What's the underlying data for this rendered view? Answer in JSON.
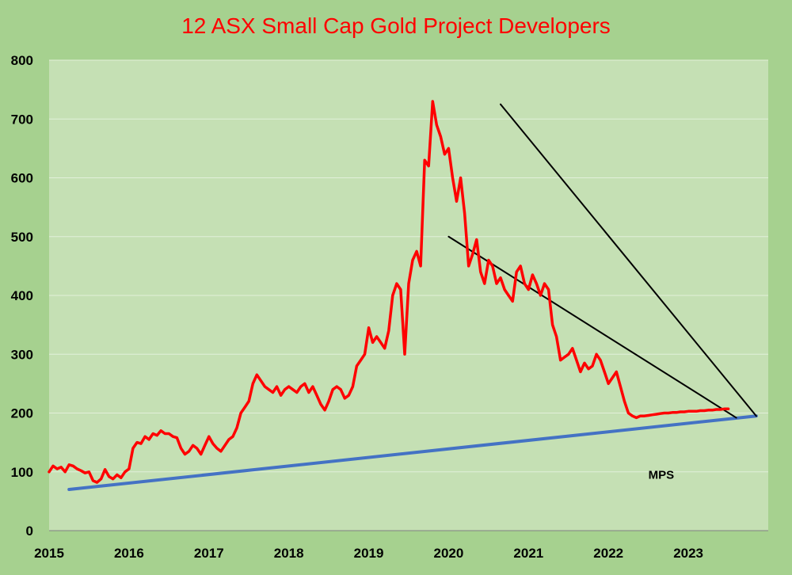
{
  "chart_data": {
    "type": "line",
    "title": "12 ASX Small Cap Gold Project Developers",
    "xlabel": "",
    "ylabel": "",
    "xlim": [
      2015,
      2024
    ],
    "ylim": [
      0,
      800
    ],
    "y_ticks": [
      0,
      100,
      200,
      300,
      400,
      500,
      600,
      700,
      800
    ],
    "x_ticks": [
      2015,
      2016,
      2017,
      2018,
      2019,
      2020,
      2021,
      2022,
      2023
    ],
    "grid": true,
    "colors": {
      "background": "#a6d18f",
      "plot_area": "#c5e0b4",
      "gridline": "#e2efd9",
      "series": "#ff0000",
      "support_line": "#4472c4",
      "trend_lines": "#000000",
      "title": "#ff0000"
    },
    "series": [
      {
        "x": [
          2015.0,
          2015.05,
          2015.1,
          2015.15,
          2015.2,
          2015.25,
          2015.3,
          2015.35,
          2015.4,
          2015.45,
          2015.5,
          2015.55,
          2015.6,
          2015.65,
          2015.7,
          2015.75,
          2015.8,
          2015.85,
          2015.9,
          2015.95,
          2016.0,
          2016.05,
          2016.1,
          2016.15,
          2016.2,
          2016.25,
          2016.3,
          2016.35,
          2016.4,
          2016.45,
          2016.5,
          2016.55,
          2016.6,
          2016.65,
          2016.7,
          2016.75,
          2016.8,
          2016.85,
          2016.9,
          2016.95,
          2017.0,
          2017.05,
          2017.1,
          2017.15,
          2017.2,
          2017.25,
          2017.3,
          2017.35,
          2017.4,
          2017.45,
          2017.5,
          2017.55,
          2017.6,
          2017.65,
          2017.7,
          2017.75,
          2017.8,
          2017.85,
          2017.9,
          2017.95,
          2018.0,
          2018.05,
          2018.1,
          2018.15,
          2018.2,
          2018.25,
          2018.3,
          2018.35,
          2018.4,
          2018.45,
          2018.5,
          2018.55,
          2018.6,
          2018.65,
          2018.7,
          2018.75,
          2018.8,
          2018.85,
          2018.9,
          2018.95,
          2019.0,
          2019.05,
          2019.1,
          2019.15,
          2019.2,
          2019.25,
          2019.3,
          2019.35,
          2019.4,
          2019.45,
          2019.5,
          2019.55,
          2019.6,
          2019.65,
          2019.7,
          2019.75,
          2019.8,
          2019.85,
          2019.9,
          2019.95,
          2020.0,
          2020.05,
          2020.1,
          2020.15,
          2020.2,
          2020.25,
          2020.3,
          2020.35,
          2020.4,
          2020.45,
          2020.5,
          2020.55,
          2020.6,
          2020.65,
          2020.7,
          2020.75,
          2020.8,
          2020.85,
          2020.9,
          2020.95,
          2021.0,
          2021.05,
          2021.1,
          2021.15,
          2021.2,
          2021.25,
          2021.3,
          2021.35,
          2021.4,
          2021.45,
          2021.5,
          2021.55,
          2021.6,
          2021.65,
          2021.7,
          2021.75,
          2021.8,
          2021.85,
          2021.9,
          2021.95,
          2022.0,
          2022.05,
          2022.1,
          2022.15,
          2022.2,
          2022.25,
          2022.3,
          2022.35,
          2022.4,
          2022.45,
          2022.5,
          2022.55,
          2022.6,
          2022.65,
          2022.7,
          2022.75,
          2022.8,
          2022.85,
          2022.9,
          2022.95,
          2023.0,
          2023.05,
          2023.1,
          2023.15,
          2023.2,
          2023.25,
          2023.3,
          2023.35,
          2023.4,
          2023.45,
          2023.5
        ],
        "values": [
          100,
          110,
          105,
          108,
          100,
          112,
          110,
          105,
          102,
          98,
          100,
          85,
          82,
          88,
          104,
          92,
          88,
          95,
          90,
          100,
          105,
          140,
          150,
          148,
          160,
          155,
          165,
          162,
          170,
          165,
          165,
          160,
          158,
          140,
          130,
          135,
          145,
          140,
          130,
          145,
          160,
          148,
          140,
          135,
          145,
          155,
          160,
          175,
          200,
          210,
          220,
          250,
          265,
          255,
          245,
          240,
          235,
          245,
          230,
          240,
          245,
          240,
          235,
          245,
          250,
          235,
          245,
          230,
          215,
          205,
          220,
          240,
          245,
          240,
          225,
          230,
          245,
          280,
          290,
          300,
          345,
          320,
          330,
          320,
          310,
          340,
          400,
          420,
          410,
          300,
          420,
          460,
          475,
          450,
          630,
          620,
          730,
          690,
          670,
          640,
          650,
          600,
          560,
          600,
          540,
          450,
          470,
          495,
          440,
          420,
          460,
          450,
          420,
          430,
          410,
          400,
          390,
          440,
          450,
          420,
          410,
          435,
          420,
          400,
          420,
          410,
          350,
          330,
          290,
          295,
          300,
          310,
          290,
          270,
          285,
          275,
          280,
          300,
          290,
          270,
          250,
          260,
          270,
          245,
          220,
          200,
          195,
          192,
          195,
          195,
          196,
          197,
          198,
          199,
          200,
          200,
          201,
          201,
          202,
          202,
          203,
          203,
          203,
          204,
          204,
          205,
          205,
          206,
          206,
          207,
          207
        ]
      }
    ],
    "trend_lines": [
      {
        "x": [
          2015.25,
          2023.85
        ],
        "y": [
          70,
          195
        ],
        "color": "#4472c4"
      },
      {
        "x": [
          2020.65,
          2023.85
        ],
        "y": [
          725,
          195
        ],
        "color": "#000000"
      },
      {
        "x": [
          2020.0,
          2023.6
        ],
        "y": [
          500,
          192
        ],
        "color": "#000000"
      }
    ],
    "annotations": [
      {
        "text": "MPS",
        "x": 2022.5,
        "y": 88
      }
    ]
  }
}
